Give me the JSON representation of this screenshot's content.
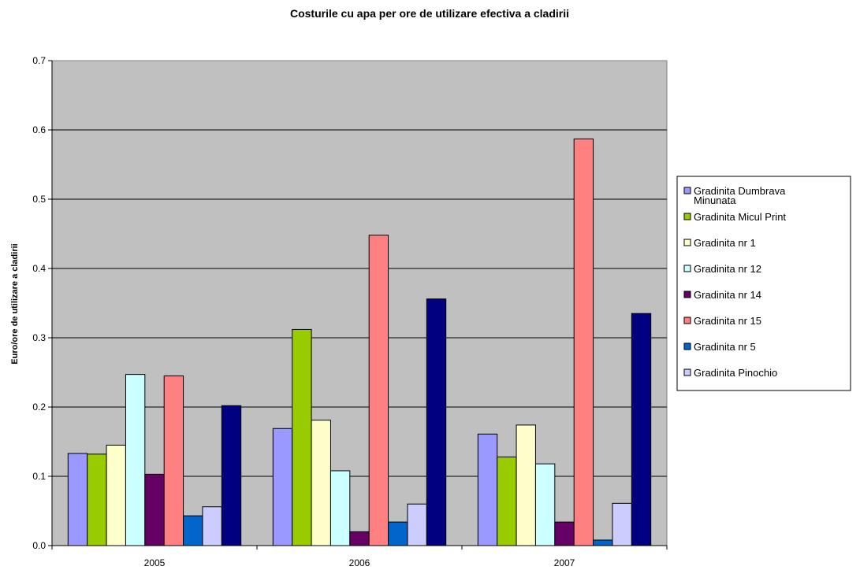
{
  "chart_data": {
    "type": "bar",
    "title": "Costurile cu apa per ore de utilizare efectiva a cladirii",
    "xlabel": "",
    "ylabel": "Euro/ore de utilizare a cladirii",
    "categories": [
      "2005",
      "2006",
      "2007"
    ],
    "ylim": [
      0,
      0.7
    ],
    "yticks": [
      "0.0",
      "0.1",
      "0.2",
      "0.3",
      "0.4",
      "0.5",
      "0.6",
      "0.7"
    ],
    "grid": true,
    "legend_position": "right",
    "plot_background": "#c0c0c0",
    "series": [
      {
        "name": "Gradinita Dumbrava Minunata",
        "legend_lines": [
          "Gradinita Dumbrava",
          "Minunata"
        ],
        "color": "#9999ff",
        "values": [
          0.133,
          0.169,
          0.161
        ]
      },
      {
        "name": "Gradinita Micul Print",
        "legend_lines": [
          "Gradinita Micul Print"
        ],
        "color": "#99cc00",
        "values": [
          0.132,
          0.312,
          0.128
        ]
      },
      {
        "name": "Gradinita nr 1",
        "legend_lines": [
          "Gradinita nr 1"
        ],
        "color": "#ffffcc",
        "values": [
          0.145,
          0.181,
          0.174
        ]
      },
      {
        "name": "Gradinita nr 12",
        "legend_lines": [
          "Gradinita nr 12"
        ],
        "color": "#ccffff",
        "values": [
          0.247,
          0.108,
          0.118
        ]
      },
      {
        "name": "Gradinita nr 14",
        "legend_lines": [
          "Gradinita nr 14"
        ],
        "color": "#660066",
        "values": [
          0.103,
          0.02,
          0.034
        ]
      },
      {
        "name": "Gradinita nr 15",
        "legend_lines": [
          "Gradinita nr 15"
        ],
        "color": "#ff8080",
        "values": [
          0.245,
          0.448,
          0.587
        ]
      },
      {
        "name": "Gradinita nr 5",
        "legend_lines": [
          "Gradinita nr 5"
        ],
        "color": "#0066cc",
        "values": [
          0.043,
          0.034,
          0.008
        ]
      },
      {
        "name": "Gradinita Pinochio",
        "legend_lines": [
          "Gradinita Pinochio"
        ],
        "color": "#ccccff",
        "values": [
          0.056,
          0.06,
          0.061
        ]
      },
      {
        "name": "",
        "legend_lines": [],
        "color": "#000080",
        "values": [
          0.202,
          0.356,
          0.335
        ]
      }
    ]
  }
}
